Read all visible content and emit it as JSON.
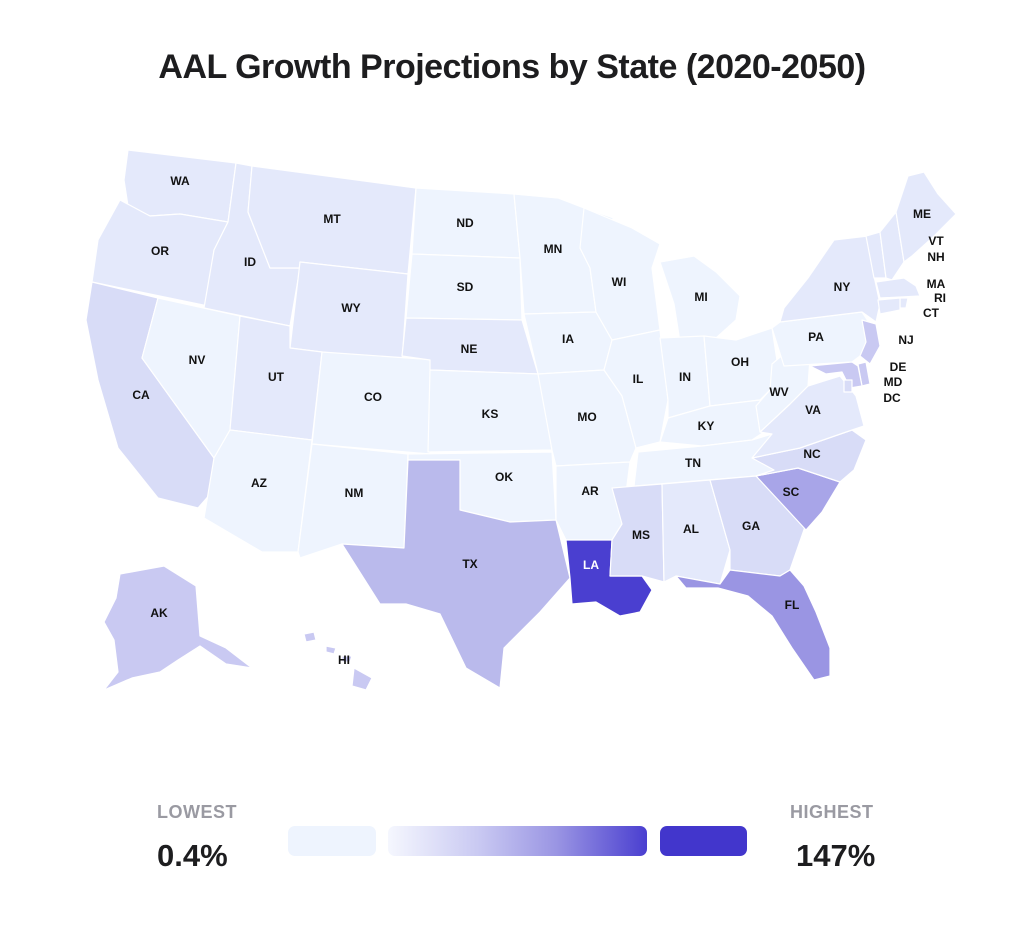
{
  "title": "AAL Growth Projections by State (2020-2050)",
  "colors": {
    "c0": "#eef4fe",
    "c1": "#e4e9fb",
    "c2": "#d8dcf7",
    "c3": "#c9c9f2",
    "c4": "#babaec",
    "c5": "#a8a5e8",
    "c6": "#9a95e3",
    "c7": "#4a3fd0",
    "highest": "#4236cc"
  },
  "states": [
    {
      "id": "WA",
      "label": "WA",
      "level": 1
    },
    {
      "id": "OR",
      "label": "OR",
      "level": 1
    },
    {
      "id": "CA",
      "label": "CA",
      "level": 2
    },
    {
      "id": "ID",
      "label": "ID",
      "level": 1
    },
    {
      "id": "NV",
      "label": "NV",
      "level": 0
    },
    {
      "id": "MT",
      "label": "MT",
      "level": 1
    },
    {
      "id": "WY",
      "label": "WY",
      "level": 1
    },
    {
      "id": "UT",
      "label": "UT",
      "level": 1
    },
    {
      "id": "AZ",
      "label": "AZ",
      "level": 0
    },
    {
      "id": "CO",
      "label": "CO",
      "level": 0
    },
    {
      "id": "NM",
      "label": "NM",
      "level": 0
    },
    {
      "id": "ND",
      "label": "ND",
      "level": 0
    },
    {
      "id": "SD",
      "label": "SD",
      "level": 0
    },
    {
      "id": "NE",
      "label": "NE",
      "level": 1
    },
    {
      "id": "KS",
      "label": "KS",
      "level": 0
    },
    {
      "id": "OK",
      "label": "OK",
      "level": 0
    },
    {
      "id": "TX",
      "label": "TX",
      "level": 4
    },
    {
      "id": "MN",
      "label": "MN",
      "level": 0
    },
    {
      "id": "IA",
      "label": "IA",
      "level": 0
    },
    {
      "id": "MO",
      "label": "MO",
      "level": 0
    },
    {
      "id": "AR",
      "label": "AR",
      "level": 0
    },
    {
      "id": "LA",
      "label": "LA",
      "level": 7
    },
    {
      "id": "WI",
      "label": "WI",
      "level": 0
    },
    {
      "id": "IL",
      "label": "IL",
      "level": 0
    },
    {
      "id": "MI",
      "label": "MI",
      "level": 0
    },
    {
      "id": "IN",
      "label": "IN",
      "level": 0
    },
    {
      "id": "OH",
      "label": "OH",
      "level": 0
    },
    {
      "id": "KY",
      "label": "KY",
      "level": 0
    },
    {
      "id": "TN",
      "label": "TN",
      "level": 0
    },
    {
      "id": "MS",
      "label": "MS",
      "level": 2
    },
    {
      "id": "AL",
      "label": "AL",
      "level": 1
    },
    {
      "id": "GA",
      "label": "GA",
      "level": 2
    },
    {
      "id": "FL",
      "label": "FL",
      "level": 6
    },
    {
      "id": "SC",
      "label": "SC",
      "level": 5
    },
    {
      "id": "NC",
      "label": "NC",
      "level": 2
    },
    {
      "id": "VA",
      "label": "VA",
      "level": 1
    },
    {
      "id": "WV",
      "label": "WV",
      "level": 0
    },
    {
      "id": "PA",
      "label": "PA",
      "level": 0
    },
    {
      "id": "NY",
      "label": "NY",
      "level": 1
    },
    {
      "id": "VT",
      "label": "VT",
      "level": 1
    },
    {
      "id": "NH",
      "label": "NH",
      "level": 1
    },
    {
      "id": "ME",
      "label": "ME",
      "level": 1
    },
    {
      "id": "MA",
      "label": "MA",
      "level": 1
    },
    {
      "id": "RI",
      "label": "RI",
      "level": 1
    },
    {
      "id": "CT",
      "label": "CT",
      "level": 1
    },
    {
      "id": "NJ",
      "label": "NJ",
      "level": 3
    },
    {
      "id": "DE",
      "label": "DE",
      "level": 3
    },
    {
      "id": "MD",
      "label": "MD",
      "level": 3
    },
    {
      "id": "DC",
      "label": "DC",
      "level": 2
    },
    {
      "id": "AK",
      "label": "AK",
      "level": 3
    },
    {
      "id": "HI",
      "label": "HI",
      "level": 3
    }
  ],
  "legend": {
    "lowest_label": "LOWEST",
    "lowest_value": "0.4%",
    "highest_label": "HIGHEST",
    "highest_value": "147%"
  }
}
